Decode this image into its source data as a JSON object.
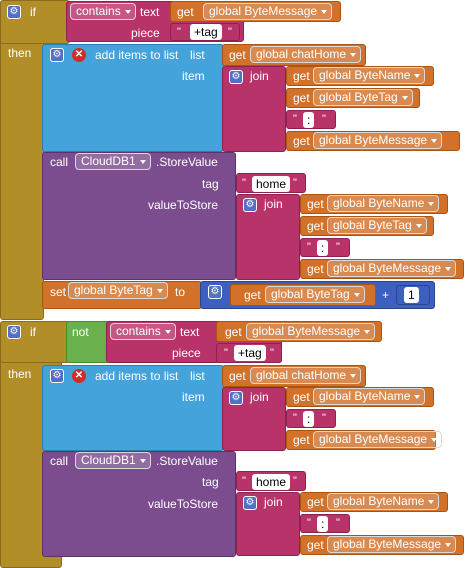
{
  "kw": {
    "if": "if",
    "then": "then",
    "not": "not",
    "contains": "contains",
    "text": "text",
    "piece": "piece",
    "add_items": "add items to list",
    "list": "list",
    "item": "item",
    "join": "join",
    "call": "call",
    "store_value": ".StoreValue",
    "tag": "tag",
    "value_to_store": "valueToStore",
    "set": "set",
    "to": "to",
    "get": "get",
    "plus": "+",
    "quote_open": "\"",
    "quote_close": "\""
  },
  "vars": {
    "byte_message": "global ByteMessage",
    "byte_name": "global ByteName",
    "byte_tag": "global ByteTag",
    "chat_home": "global chatHome"
  },
  "component": "CloudDB1",
  "strings": {
    "plus_tag": "+tag",
    "colon": ":",
    "home": "home"
  },
  "numbers": {
    "one": "1"
  },
  "icons": {
    "gear": "gear-icon",
    "close": "close-icon"
  },
  "colors": {
    "control": "#b28e28",
    "list": "#44a3da",
    "text": "#b8336a",
    "component": "#7c4d8e",
    "variable": "#d1712a",
    "math": "#3d5fbf",
    "logic": "#6ab04c"
  }
}
